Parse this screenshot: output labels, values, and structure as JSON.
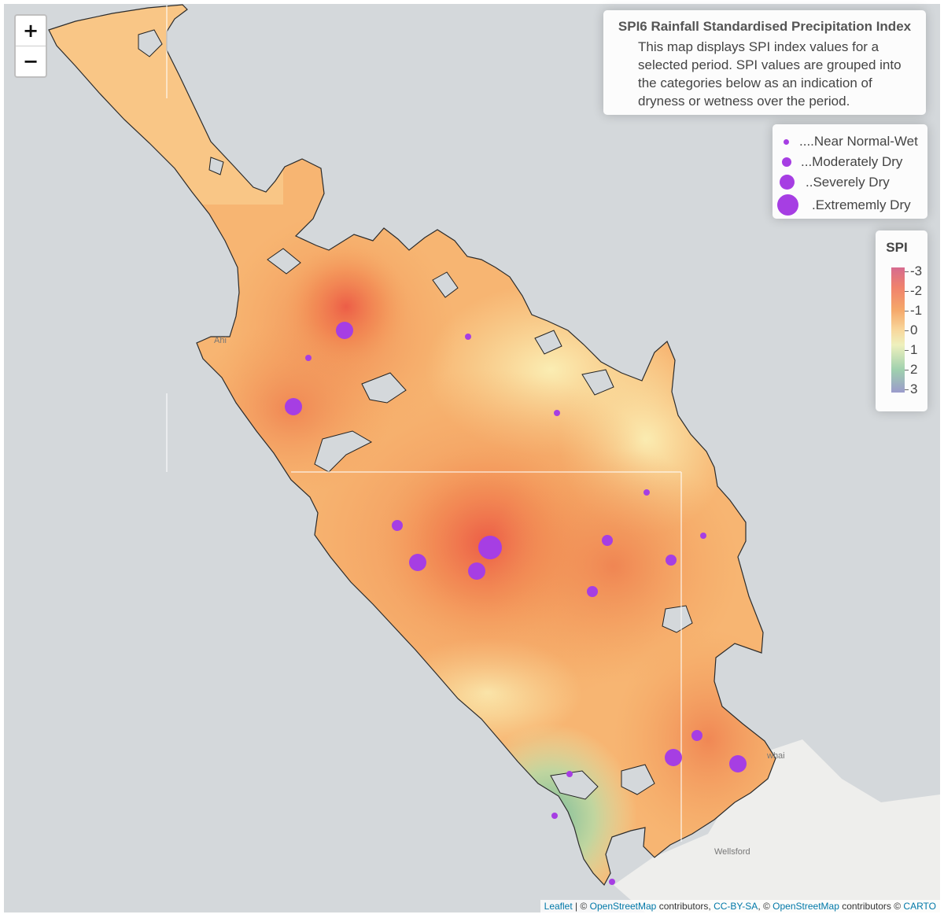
{
  "map": {
    "title": "SPI6 Rainfall Standardised Precipitation Index",
    "description": "This map displays SPI index values for a selected period. SPI values are grouped into the categories below as an indication of dryness or wetness over the period.",
    "zoom_in": "+",
    "zoom_out": "−",
    "place_labels": [
      "Wellsford",
      "Ahi",
      "whai"
    ],
    "colors": {
      "sea": "#d4d8db",
      "land": "#f0f0ee",
      "marker": "#a63ee3",
      "coast": "#222222"
    }
  },
  "legend": {
    "categories": [
      {
        "label": "....Near Normal-Wet",
        "size": "small"
      },
      {
        "label": "...Moderately Dry",
        "size": "medium"
      },
      {
        "label": "..Severely Dry",
        "size": "large"
      },
      {
        "label": ".Extrememly Dry",
        "size": "xlarge"
      }
    ]
  },
  "scale": {
    "title": "SPI",
    "labels": [
      "-3",
      "-2",
      "-1",
      "0",
      "1",
      "2",
      "3"
    ],
    "colors": [
      "#d66b8f",
      "#f0826c",
      "#f5a86a",
      "#f8d79c",
      "#eef0bd",
      "#9fd0ae",
      "#9b9bcb"
    ]
  },
  "attribution": {
    "leaflet": "Leaflet",
    "sep1": " | © ",
    "osm1": "OpenStreetMap",
    "contrib1": " contributors, ",
    "ccbysa": "CC-BY-SA",
    "sep2": ", © ",
    "osm2": "OpenStreetMap",
    "contrib2": " contributors © ",
    "carto": "CARTO"
  }
}
